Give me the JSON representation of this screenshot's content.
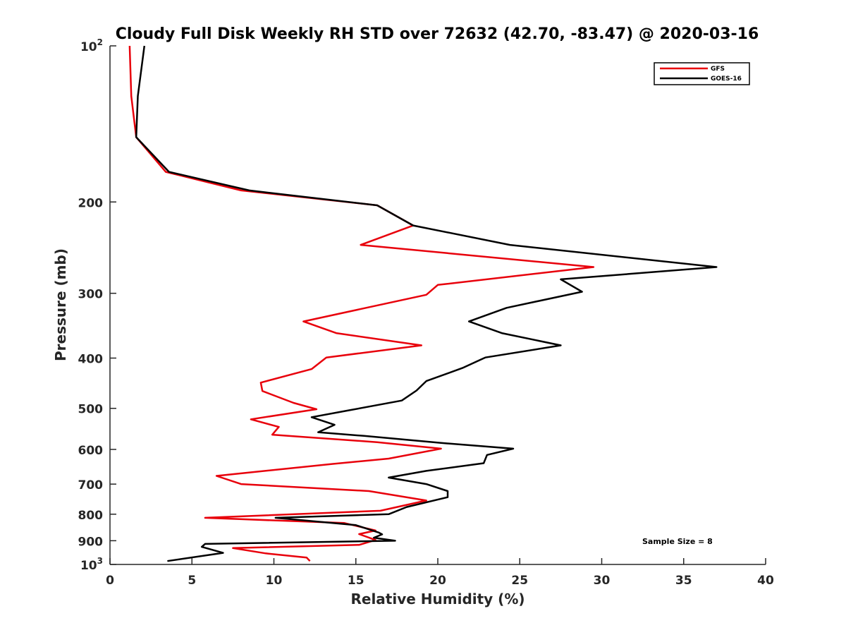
{
  "chart_data": {
    "type": "line",
    "title": "Cloudy Full Disk Weekly RH STD over 72632 (42.70, -83.47) @ 2020-03-16",
    "xlabel": "Relative Humidity (%)",
    "ylabel": "Pressure (mb)",
    "xlim": [
      0,
      40
    ],
    "ylim": [
      100,
      1000
    ],
    "y_scale": "log",
    "y_reversed": true,
    "grid": false,
    "legend_position": "top-right",
    "x_ticks": [
      "0",
      "5",
      "10",
      "15",
      "20",
      "25",
      "30",
      "35",
      "40"
    ],
    "y_ticks": [
      {
        "value": 100,
        "label": "10",
        "sup": "2"
      },
      {
        "value": 200,
        "label": "200",
        "sup": ""
      },
      {
        "value": 300,
        "label": "300",
        "sup": ""
      },
      {
        "value": 400,
        "label": "400",
        "sup": ""
      },
      {
        "value": 500,
        "label": "500",
        "sup": ""
      },
      {
        "value": 600,
        "label": "600",
        "sup": ""
      },
      {
        "value": 700,
        "label": "700",
        "sup": ""
      },
      {
        "value": 800,
        "label": "800",
        "sup": ""
      },
      {
        "value": 900,
        "label": "900",
        "sup": ""
      },
      {
        "value": 1000,
        "label": "10",
        "sup": "3"
      }
    ],
    "series": [
      {
        "name": "GFS",
        "color": "#e8000b",
        "points": [
          [
            1.2,
            100
          ],
          [
            1.3,
            125
          ],
          [
            1.6,
            150
          ],
          [
            3.4,
            175
          ],
          [
            8.0,
            190
          ],
          [
            16.3,
            203
          ],
          [
            18.5,
            222
          ],
          [
            15.3,
            242
          ],
          [
            29.5,
            267
          ],
          [
            20.0,
            289
          ],
          [
            19.3,
            302
          ],
          [
            11.8,
            340
          ],
          [
            13.8,
            358
          ],
          [
            19.0,
            378
          ],
          [
            13.2,
            399
          ],
          [
            12.3,
            420
          ],
          [
            9.2,
            446
          ],
          [
            9.3,
            463
          ],
          [
            11.2,
            488
          ],
          [
            12.6,
            502
          ],
          [
            8.6,
            525
          ],
          [
            10.3,
            543
          ],
          [
            9.9,
            562
          ],
          [
            16.3,
            581
          ],
          [
            20.2,
            598
          ],
          [
            17.0,
            625
          ],
          [
            13.6,
            640
          ],
          [
            6.5,
            675
          ],
          [
            8.0,
            700
          ],
          [
            15.8,
            722
          ],
          [
            19.3,
            753
          ],
          [
            16.5,
            788
          ],
          [
            5.8,
            813
          ],
          [
            14.3,
            832
          ],
          [
            16.2,
            860
          ],
          [
            15.2,
            874
          ],
          [
            16.2,
            897
          ],
          [
            15.2,
            917
          ],
          [
            7.5,
            930
          ],
          [
            9.5,
            952
          ],
          [
            12.0,
            970
          ],
          [
            12.2,
            985
          ]
        ]
      },
      {
        "name": "GOES-16",
        "color": "#000000",
        "points": [
          [
            2.1,
            100
          ],
          [
            1.7,
            125
          ],
          [
            1.6,
            150
          ],
          [
            3.6,
            175
          ],
          [
            8.5,
            190
          ],
          [
            16.3,
            203
          ],
          [
            18.5,
            222
          ],
          [
            24.4,
            242
          ],
          [
            37.0,
            267
          ],
          [
            27.5,
            282
          ],
          [
            28.8,
            298
          ],
          [
            24.2,
            320
          ],
          [
            21.9,
            340
          ],
          [
            23.9,
            358
          ],
          [
            27.5,
            378
          ],
          [
            22.9,
            399
          ],
          [
            21.5,
            418
          ],
          [
            19.3,
            443
          ],
          [
            18.7,
            462
          ],
          [
            17.8,
            483
          ],
          [
            14.5,
            505
          ],
          [
            12.3,
            520
          ],
          [
            13.7,
            538
          ],
          [
            12.7,
            556
          ],
          [
            15.5,
            565
          ],
          [
            20.2,
            583
          ],
          [
            24.6,
            598
          ],
          [
            23.0,
            615
          ],
          [
            22.8,
            638
          ],
          [
            19.3,
            660
          ],
          [
            17.0,
            680
          ],
          [
            19.3,
            700
          ],
          [
            20.6,
            722
          ],
          [
            20.6,
            742
          ],
          [
            18.1,
            775
          ],
          [
            17.0,
            800
          ],
          [
            10.1,
            813
          ],
          [
            15.0,
            840
          ],
          [
            16.4,
            868
          ],
          [
            16.6,
            875
          ],
          [
            16.1,
            888
          ],
          [
            17.4,
            900
          ],
          [
            5.8,
            913
          ],
          [
            5.6,
            925
          ],
          [
            6.9,
            950
          ],
          [
            3.5,
            985
          ]
        ]
      }
    ],
    "annotations": [
      "Sample Size = 8"
    ]
  }
}
